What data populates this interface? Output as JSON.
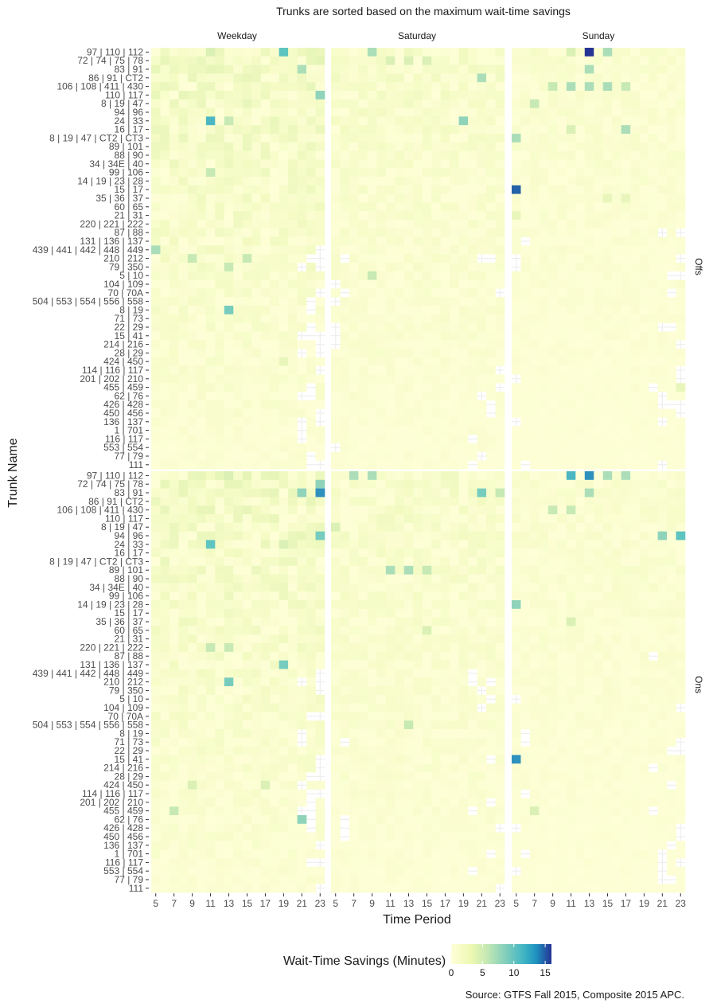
{
  "chart_data": {
    "type": "heatmap",
    "title": "Trunks are sorted based on the maximum wait-time savings",
    "xlabel": "Time Period",
    "ylabel": "Trunk Name",
    "caption": "Source: GTFS Fall 2015, Composite 2015 APC.",
    "legend": {
      "title": "Wait-Time Savings (Minutes)",
      "ticks": [
        0,
        5,
        10,
        15
      ],
      "range": [
        0,
        16
      ],
      "position": "bottom"
    },
    "columns": [
      "Weekday",
      "Saturday",
      "Sunday"
    ],
    "rows": [
      "Offs",
      "Ons"
    ],
    "x_ticks": [
      5,
      7,
      9,
      11,
      13,
      15,
      17,
      19,
      21,
      23
    ],
    "hours": [
      5,
      6,
      7,
      8,
      9,
      10,
      11,
      12,
      13,
      14,
      15,
      16,
      17,
      18,
      19,
      20,
      21,
      22,
      23
    ],
    "trunks": [
      "97 | 110 | 112",
      "72 | 74 | 75 | 78",
      "83 | 91",
      "86 | 91 | CT2",
      "106 | 108 | 411 | 430",
      "110 | 117",
      "8 | 19 | 47",
      "94 | 96",
      "24 | 33",
      "16 | 17",
      "8 | 19 | 47 | CT2 | CT3",
      "89 | 101",
      "88 | 90",
      "34 | 34E | 40",
      "99 | 106",
      "14 | 19 | 23 | 28",
      "15 | 17",
      "35 | 36 | 37",
      "60 | 65",
      "21 | 31",
      "220 | 221 | 222",
      "87 | 88",
      "131 | 136 | 137",
      "439 | 441 | 442 | 448 | 449",
      "210 | 212",
      "79 | 350",
      "5 | 10",
      "104 | 109",
      "70 | 70A",
      "504 | 553 | 554 | 556 | 558",
      "8 | 19",
      "71 | 73",
      "22 | 29",
      "15 | 41",
      "214 | 216",
      "28 | 29",
      "424 | 450",
      "114 | 116 | 117",
      "201 | 202 | 210",
      "455 | 459",
      "62 | 76",
      "426 | 428",
      "450 | 456",
      "136 | 137",
      "1 | 701",
      "116 | 117",
      "553 | 554",
      "77 | 79",
      "111"
    ],
    "highlights": {
      "Offs": {
        "Weekday": [
          [
            0,
            19,
            9
          ],
          [
            0,
            11,
            4
          ],
          [
            1,
            23,
            3.5
          ],
          [
            2,
            21,
            6
          ],
          [
            5,
            23,
            7
          ],
          [
            8,
            11,
            10
          ],
          [
            8,
            13,
            5
          ],
          [
            14,
            11,
            5
          ],
          [
            23,
            5,
            6
          ],
          [
            24,
            9,
            5
          ],
          [
            24,
            15,
            5
          ],
          [
            25,
            13,
            5
          ],
          [
            30,
            13,
            8
          ],
          [
            36,
            19,
            3
          ]
        ],
        "Saturday": [
          [
            0,
            9,
            6
          ],
          [
            1,
            11,
            4
          ],
          [
            1,
            13,
            4
          ],
          [
            1,
            15,
            4
          ],
          [
            3,
            21,
            6
          ],
          [
            8,
            19,
            7
          ],
          [
            26,
            9,
            5
          ]
        ],
        "Sunday": [
          [
            0,
            13,
            16
          ],
          [
            0,
            15,
            6
          ],
          [
            0,
            11,
            4
          ],
          [
            2,
            13,
            6
          ],
          [
            4,
            9,
            5
          ],
          [
            4,
            11,
            6
          ],
          [
            4,
            13,
            6
          ],
          [
            4,
            15,
            6
          ],
          [
            4,
            17,
            5
          ],
          [
            6,
            7,
            5
          ],
          [
            9,
            11,
            4
          ],
          [
            9,
            17,
            6
          ],
          [
            10,
            5,
            6
          ],
          [
            16,
            5,
            14
          ],
          [
            17,
            15,
            3
          ],
          [
            17,
            17,
            3
          ],
          [
            19,
            5,
            3
          ],
          [
            39,
            23,
            3
          ]
        ]
      },
      "Ons": {
        "Weekday": [
          [
            0,
            13,
            4
          ],
          [
            1,
            23,
            7
          ],
          [
            2,
            21,
            7
          ],
          [
            2,
            23,
            12
          ],
          [
            7,
            23,
            8
          ],
          [
            8,
            11,
            9
          ],
          [
            8,
            19,
            4
          ],
          [
            20,
            11,
            5
          ],
          [
            20,
            13,
            5
          ],
          [
            22,
            19,
            8
          ],
          [
            24,
            13,
            8
          ],
          [
            36,
            9,
            4
          ],
          [
            36,
            17,
            4
          ],
          [
            39,
            7,
            5
          ],
          [
            40,
            21,
            7
          ]
        ],
        "Saturday": [
          [
            0,
            7,
            6
          ],
          [
            0,
            9,
            6
          ],
          [
            2,
            21,
            8
          ],
          [
            2,
            23,
            5
          ],
          [
            6,
            5,
            4
          ],
          [
            11,
            11,
            6
          ],
          [
            11,
            13,
            6
          ],
          [
            11,
            15,
            5
          ],
          [
            18,
            15,
            4
          ],
          [
            29,
            13,
            5
          ]
        ],
        "Sunday": [
          [
            0,
            11,
            10
          ],
          [
            0,
            13,
            12
          ],
          [
            0,
            15,
            6
          ],
          [
            0,
            17,
            6
          ],
          [
            2,
            13,
            6
          ],
          [
            4,
            9,
            5
          ],
          [
            4,
            11,
            5
          ],
          [
            7,
            21,
            7
          ],
          [
            7,
            23,
            9
          ],
          [
            15,
            5,
            7
          ],
          [
            17,
            11,
            4
          ],
          [
            33,
            5,
            12
          ],
          [
            39,
            7,
            4
          ]
        ]
      }
    }
  }
}
